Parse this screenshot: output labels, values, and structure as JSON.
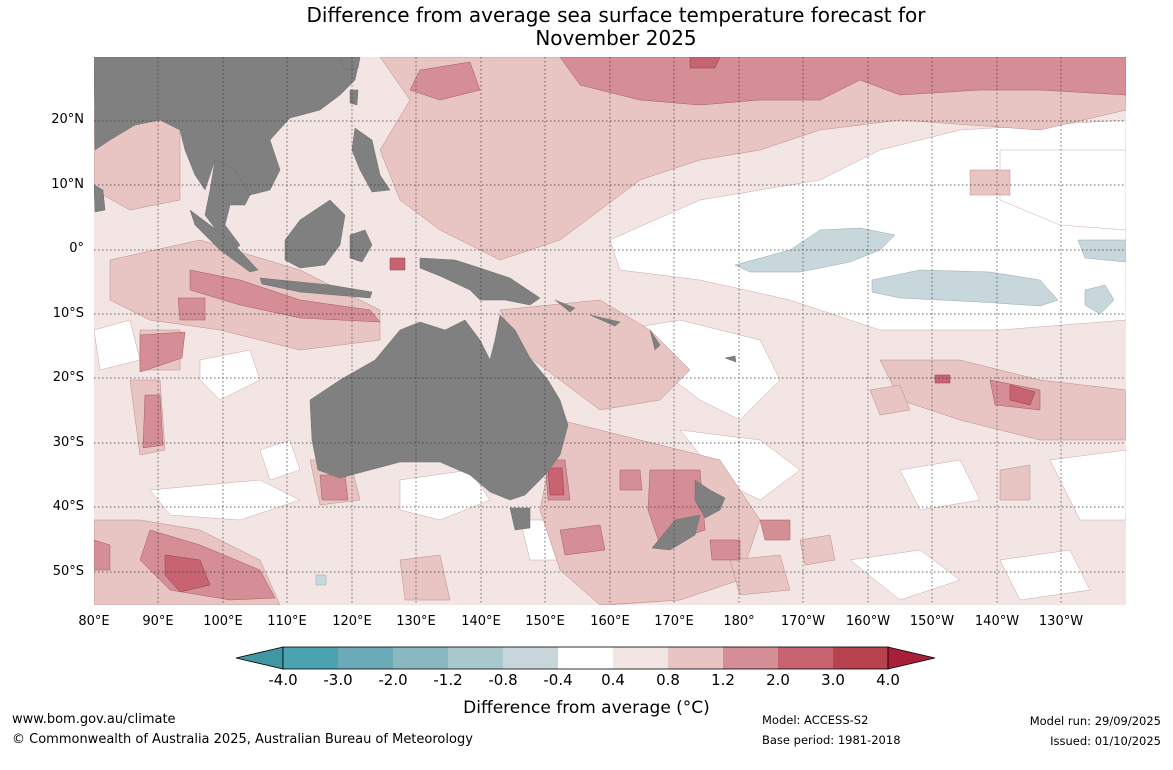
{
  "title": {
    "line1": "Difference from average sea surface temperature forecast for",
    "line2": "November 2025"
  },
  "lat_labels": [
    "20°N",
    "10°N",
    "0°",
    "10°S",
    "20°S",
    "30°S",
    "40°S",
    "50°S"
  ],
  "lon_labels": [
    "80°E",
    "90°E",
    "100°E",
    "110°E",
    "120°E",
    "130°E",
    "140°E",
    "150°E",
    "160°E",
    "170°E",
    "180°",
    "170°W",
    "160°W",
    "150°W",
    "140°W",
    "130°W"
  ],
  "colorbar": {
    "labels": [
      "-4.0",
      "-3.0",
      "-2.0",
      "-1.2",
      "-0.8",
      "-0.4",
      "0.4",
      "0.8",
      "1.2",
      "2.0",
      "3.0",
      "4.0"
    ],
    "colors": [
      "#3f97a3",
      "#4ba3b2",
      "#6aabb7",
      "#8bb8c0",
      "#a9c8cd",
      "#c7d7db",
      "#ffffff",
      "#f3e5e4",
      "#e8c5c2",
      "#d58e95",
      "#c86471",
      "#b8434f",
      "#a81f3a"
    ],
    "title": "Difference from average (°C)"
  },
  "footer": {
    "url": "www.bom.gov.au/climate",
    "copyright": "© Commonwealth of Australia 2025, Australian Bureau of Meteorology",
    "model": "Model: ACCESS-S2",
    "base_period": "Base period: 1981-2018",
    "model_run": "Model run: 29/09/2025",
    "issued": "Issued: 01/10/2025"
  }
}
